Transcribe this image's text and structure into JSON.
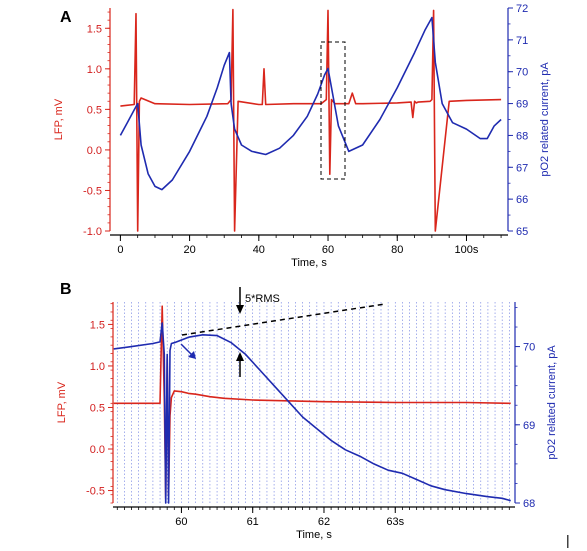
{
  "colors": {
    "lfp": "#d9261c",
    "po2": "#1f2bb0",
    "grid": "#6b7be0"
  },
  "panels": {
    "a_label": "A",
    "b_label": "B"
  },
  "chart_data": [
    {
      "type": "line",
      "panel": "A",
      "xlabel": "Time, s",
      "ylabel_left": "LFP, mV",
      "ylabel_right": "pO2 related current, pA",
      "xlim": [
        -3,
        112
      ],
      "ylim_left": [
        -1.0,
        1.75
      ],
      "ylim_right": [
        65,
        72
      ],
      "x_ticks": [
        0,
        20,
        40,
        60,
        80,
        100
      ],
      "x_tick_labels": [
        "0",
        "20",
        "40",
        "60",
        "80",
        "100s"
      ],
      "y_left_ticks": [
        -1.0,
        -0.5,
        0.0,
        0.5,
        1.0,
        1.5
      ],
      "y_left_tick_labels": [
        "-1.0",
        "-0.5",
        "0.0",
        "0.5",
        "1.0",
        "1.5"
      ],
      "y_right_ticks": [
        65,
        66,
        67,
        68,
        69,
        70,
        71,
        72
      ],
      "y_right_tick_labels": [
        "65",
        "66",
        "67",
        "68",
        "69",
        "70",
        "71",
        "72"
      ],
      "grid": false,
      "series": [
        {
          "name": "LFP",
          "axis": "left",
          "x": [
            0,
            4,
            4.5,
            5,
            5.5,
            6,
            10,
            20,
            31,
            32,
            32.5,
            33,
            34,
            40,
            41,
            41.5,
            42,
            50,
            58,
            59.5,
            60,
            60.5,
            61,
            62,
            66,
            67,
            68,
            70,
            80,
            84,
            84.5,
            85,
            85.5,
            86,
            89.5,
            90,
            90.5,
            91,
            95,
            100,
            110
          ],
          "values": [
            0.54,
            0.56,
            1.68,
            -1.0,
            0.6,
            0.64,
            0.57,
            0.56,
            0.57,
            0.62,
            1.73,
            -1.0,
            0.6,
            0.56,
            0.56,
            1.0,
            0.56,
            0.57,
            0.57,
            0.62,
            1.72,
            -0.3,
            0.62,
            0.57,
            0.57,
            0.7,
            0.57,
            0.57,
            0.58,
            0.59,
            0.4,
            0.6,
            0.58,
            0.59,
            0.6,
            0.62,
            1.72,
            -1.0,
            0.6,
            0.61,
            0.62
          ]
        },
        {
          "name": "pO2",
          "axis": "right",
          "x": [
            0,
            2,
            4,
            5,
            6,
            8,
            10,
            12,
            15,
            20,
            25,
            28,
            30,
            31.5,
            32,
            33,
            35,
            38,
            42,
            46,
            50,
            54,
            57,
            59,
            60,
            61,
            63,
            66,
            70,
            75,
            80,
            85,
            88,
            90,
            91,
            93,
            96,
            100,
            104,
            106,
            108,
            110
          ],
          "values": [
            68.0,
            68.4,
            68.8,
            69.0,
            67.7,
            66.8,
            66.4,
            66.3,
            66.6,
            67.5,
            68.6,
            69.5,
            70.2,
            70.6,
            69.0,
            68.2,
            67.7,
            67.5,
            67.4,
            67.6,
            68.0,
            68.6,
            69.3,
            69.9,
            70.1,
            69.5,
            68.3,
            67.5,
            67.7,
            68.5,
            69.5,
            70.6,
            71.3,
            71.7,
            70.3,
            69.0,
            68.4,
            68.2,
            67.9,
            67.9,
            68.3,
            68.5
          ]
        }
      ]
    },
    {
      "type": "line",
      "panel": "B",
      "xlabel": "Time, s",
      "ylabel_left": "LFP, mV",
      "ylabel_right": "pO2 related current, pA",
      "xlim": [
        59.04,
        64.68
      ],
      "ylim_left": [
        -0.65,
        1.77
      ],
      "ylim_right": [
        68.0,
        70.57
      ],
      "x_ticks": [
        60,
        61,
        62,
        63
      ],
      "x_tick_labels": [
        "60",
        "61",
        "62",
        "63s"
      ],
      "y_left_ticks": [
        -0.5,
        0.0,
        0.5,
        1.0,
        1.5
      ],
      "y_left_tick_labels": [
        "-0.5",
        "0.0",
        "0.5",
        "1.0",
        "1.5"
      ],
      "y_right_ticks": [
        68,
        69,
        70
      ],
      "y_right_tick_labels": [
        "68",
        "69",
        "70"
      ],
      "grid": true,
      "annotations": {
        "rms_label": "5*RMS"
      },
      "series": [
        {
          "name": "LFP",
          "axis": "left",
          "x": [
            59.05,
            59.5,
            59.7,
            59.73,
            59.76,
            59.78,
            59.8,
            59.82,
            59.84,
            59.86,
            59.9,
            60.0,
            60.1,
            60.2,
            60.4,
            60.6,
            61,
            62,
            63,
            64,
            64.62
          ],
          "values": [
            0.55,
            0.55,
            0.55,
            1.72,
            0.6,
            -0.6,
            1.1,
            -0.55,
            0.4,
            0.62,
            0.7,
            0.69,
            0.67,
            0.66,
            0.63,
            0.61,
            0.59,
            0.57,
            0.56,
            0.56,
            0.55
          ]
        },
        {
          "name": "pO2",
          "axis": "right",
          "x": [
            59.05,
            59.3,
            59.6,
            59.7,
            59.73,
            59.76,
            59.78,
            59.8,
            59.82,
            59.84,
            59.86,
            59.9,
            60.1,
            60.3,
            60.5,
            60.7,
            60.9,
            61.1,
            61.3,
            61.5,
            61.7,
            61.9,
            62.1,
            62.3,
            62.5,
            62.7,
            62.9,
            63.1,
            63.3,
            63.5,
            63.7,
            64.0,
            64.3,
            64.5,
            64.62
          ],
          "values": [
            69.97,
            70.0,
            70.04,
            70.06,
            70.3,
            69.9,
            68.0,
            69.9,
            68.0,
            69.95,
            70.04,
            70.05,
            70.12,
            70.15,
            70.14,
            70.05,
            69.9,
            69.7,
            69.5,
            69.3,
            69.1,
            68.95,
            68.8,
            68.68,
            68.6,
            68.5,
            68.42,
            68.38,
            68.3,
            68.22,
            68.17,
            68.12,
            68.08,
            68.06,
            68.03
          ]
        }
      ]
    }
  ]
}
